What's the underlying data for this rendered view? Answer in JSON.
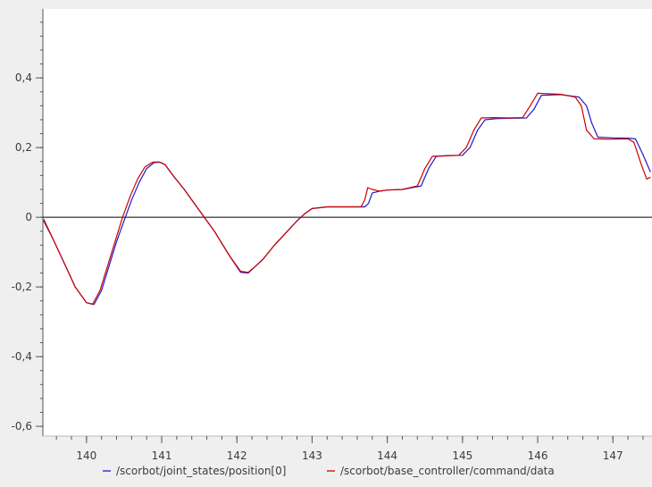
{
  "chart_data": {
    "type": "line",
    "title": "",
    "xlabel": "",
    "ylabel": "",
    "xlim": [
      139.42,
      147.52
    ],
    "ylim": [
      -0.628,
      0.598
    ],
    "x_ticks": [
      140,
      141,
      142,
      143,
      144,
      145,
      146,
      147
    ],
    "x_tick_labels": [
      "140",
      "141",
      "142",
      "143",
      "144",
      "145",
      "146",
      "147"
    ],
    "y_ticks": [
      0.4,
      0.2,
      0,
      -0.2,
      -0.4,
      -0.6
    ],
    "y_tick_labels": [
      "0,4",
      "0,2",
      "0",
      "-0,2",
      "-0,4",
      "-0,6"
    ],
    "zero_line": true,
    "grid": false,
    "legend_position": "bottom",
    "series": [
      {
        "name": "/scorbot/joint_states/position[0]",
        "color": "#1a1acc",
        "x": [
          139.43,
          139.55,
          139.7,
          139.85,
          140.0,
          140.1,
          140.2,
          140.3,
          140.4,
          140.5,
          140.6,
          140.7,
          140.8,
          140.9,
          140.98,
          141.05,
          141.15,
          141.3,
          141.5,
          141.7,
          141.9,
          142.05,
          142.15,
          142.25,
          142.35,
          142.5,
          142.65,
          142.8,
          142.9,
          143.0,
          143.2,
          143.4,
          143.7,
          143.75,
          143.8,
          143.9,
          144.0,
          144.2,
          144.45,
          144.55,
          144.65,
          144.8,
          145.0,
          145.1,
          145.2,
          145.3,
          145.45,
          145.6,
          145.85,
          145.95,
          146.05,
          146.3,
          146.55,
          146.65,
          146.72,
          146.8,
          147.0,
          147.2,
          147.3,
          147.4,
          147.5
        ],
        "y": [
          -0.01,
          -0.06,
          -0.13,
          -0.2,
          -0.245,
          -0.25,
          -0.21,
          -0.14,
          -0.07,
          -0.01,
          0.05,
          0.1,
          0.14,
          0.157,
          0.158,
          0.15,
          0.12,
          0.08,
          0.02,
          -0.04,
          -0.11,
          -0.158,
          -0.16,
          -0.14,
          -0.12,
          -0.08,
          -0.045,
          -0.01,
          0.01,
          0.025,
          0.03,
          0.03,
          0.03,
          0.04,
          0.07,
          0.075,
          0.078,
          0.08,
          0.09,
          0.14,
          0.175,
          0.177,
          0.178,
          0.2,
          0.25,
          0.28,
          0.283,
          0.284,
          0.285,
          0.31,
          0.35,
          0.352,
          0.345,
          0.32,
          0.27,
          0.23,
          0.228,
          0.227,
          0.225,
          0.18,
          0.13
        ]
      },
      {
        "name": "/scorbot/base_controller/command/data",
        "color": "#cc0000",
        "x": [
          139.43,
          139.55,
          139.7,
          139.85,
          140.0,
          140.08,
          140.18,
          140.28,
          140.38,
          140.48,
          140.58,
          140.68,
          140.78,
          140.88,
          140.96,
          141.04,
          141.15,
          141.3,
          141.5,
          141.7,
          141.9,
          142.05,
          142.15,
          142.25,
          142.35,
          142.5,
          142.65,
          142.8,
          142.9,
          143.0,
          143.2,
          143.4,
          143.65,
          143.7,
          143.74,
          143.8,
          143.9,
          144.0,
          144.2,
          144.4,
          144.5,
          144.6,
          144.75,
          144.95,
          145.05,
          145.15,
          145.25,
          145.4,
          145.6,
          145.8,
          145.9,
          146.0,
          146.3,
          146.5,
          146.58,
          146.65,
          146.75,
          146.95,
          147.2,
          147.28,
          147.38,
          147.45,
          147.5
        ],
        "y": [
          -0.005,
          -0.06,
          -0.13,
          -0.2,
          -0.245,
          -0.25,
          -0.21,
          -0.14,
          -0.07,
          0.0,
          0.06,
          0.11,
          0.145,
          0.158,
          0.159,
          0.152,
          0.12,
          0.08,
          0.02,
          -0.04,
          -0.11,
          -0.155,
          -0.158,
          -0.14,
          -0.12,
          -0.08,
          -0.045,
          -0.01,
          0.01,
          0.025,
          0.03,
          0.03,
          0.03,
          0.05,
          0.085,
          0.08,
          0.075,
          0.078,
          0.08,
          0.09,
          0.14,
          0.175,
          0.176,
          0.178,
          0.2,
          0.25,
          0.285,
          0.286,
          0.285,
          0.286,
          0.32,
          0.356,
          0.353,
          0.345,
          0.32,
          0.25,
          0.225,
          0.224,
          0.225,
          0.215,
          0.15,
          0.11,
          0.115
        ]
      }
    ]
  }
}
